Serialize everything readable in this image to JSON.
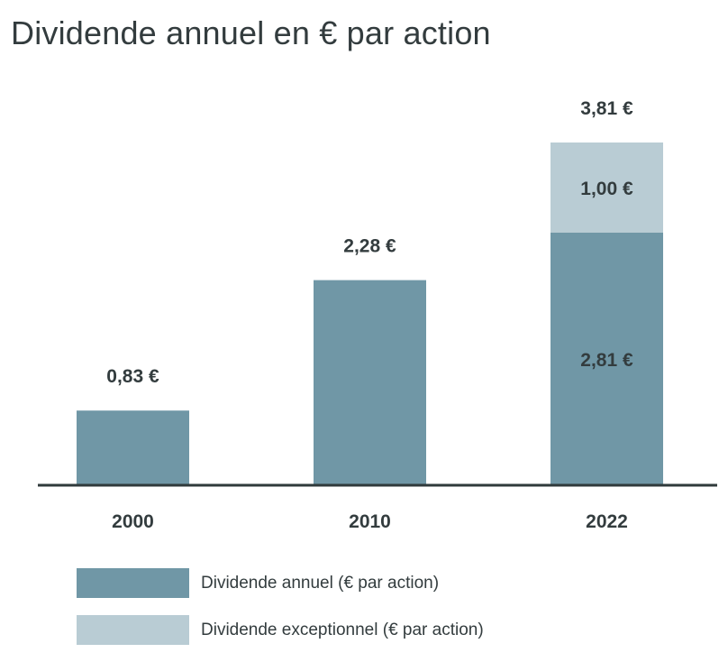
{
  "title": "Dividende annuel en € par action",
  "colors": {
    "annual": "#7097a6",
    "exceptional": "#b9ccd4",
    "axis": "#2f3a3b",
    "text": "#333c3e"
  },
  "chart_data": {
    "type": "bar",
    "stacked": true,
    "categories": [
      "2000",
      "2010",
      "2022"
    ],
    "series": [
      {
        "name": "Dividende annuel (€ par action)",
        "values": [
          0.83,
          2.28,
          2.81
        ],
        "labels": [
          "",
          "",
          "2,81 €"
        ]
      },
      {
        "name": "Dividende exceptionnel (€ par action)",
        "values": [
          0,
          0,
          1.0
        ],
        "labels": [
          "",
          "",
          "1,00 €"
        ]
      }
    ],
    "totals": [
      0.83,
      2.28,
      3.81
    ],
    "total_labels": [
      "0,83 €",
      "2,28 €",
      "3,81 €"
    ],
    "ylim": [
      0,
      3.81
    ],
    "grid": false,
    "legend_position": "bottom-left"
  },
  "legend": {
    "items": [
      {
        "label": "Dividende annuel (€ par action)",
        "color": "#7097a6"
      },
      {
        "label": "Dividende exceptionnel (€ par action)",
        "color": "#b9ccd4"
      }
    ]
  }
}
